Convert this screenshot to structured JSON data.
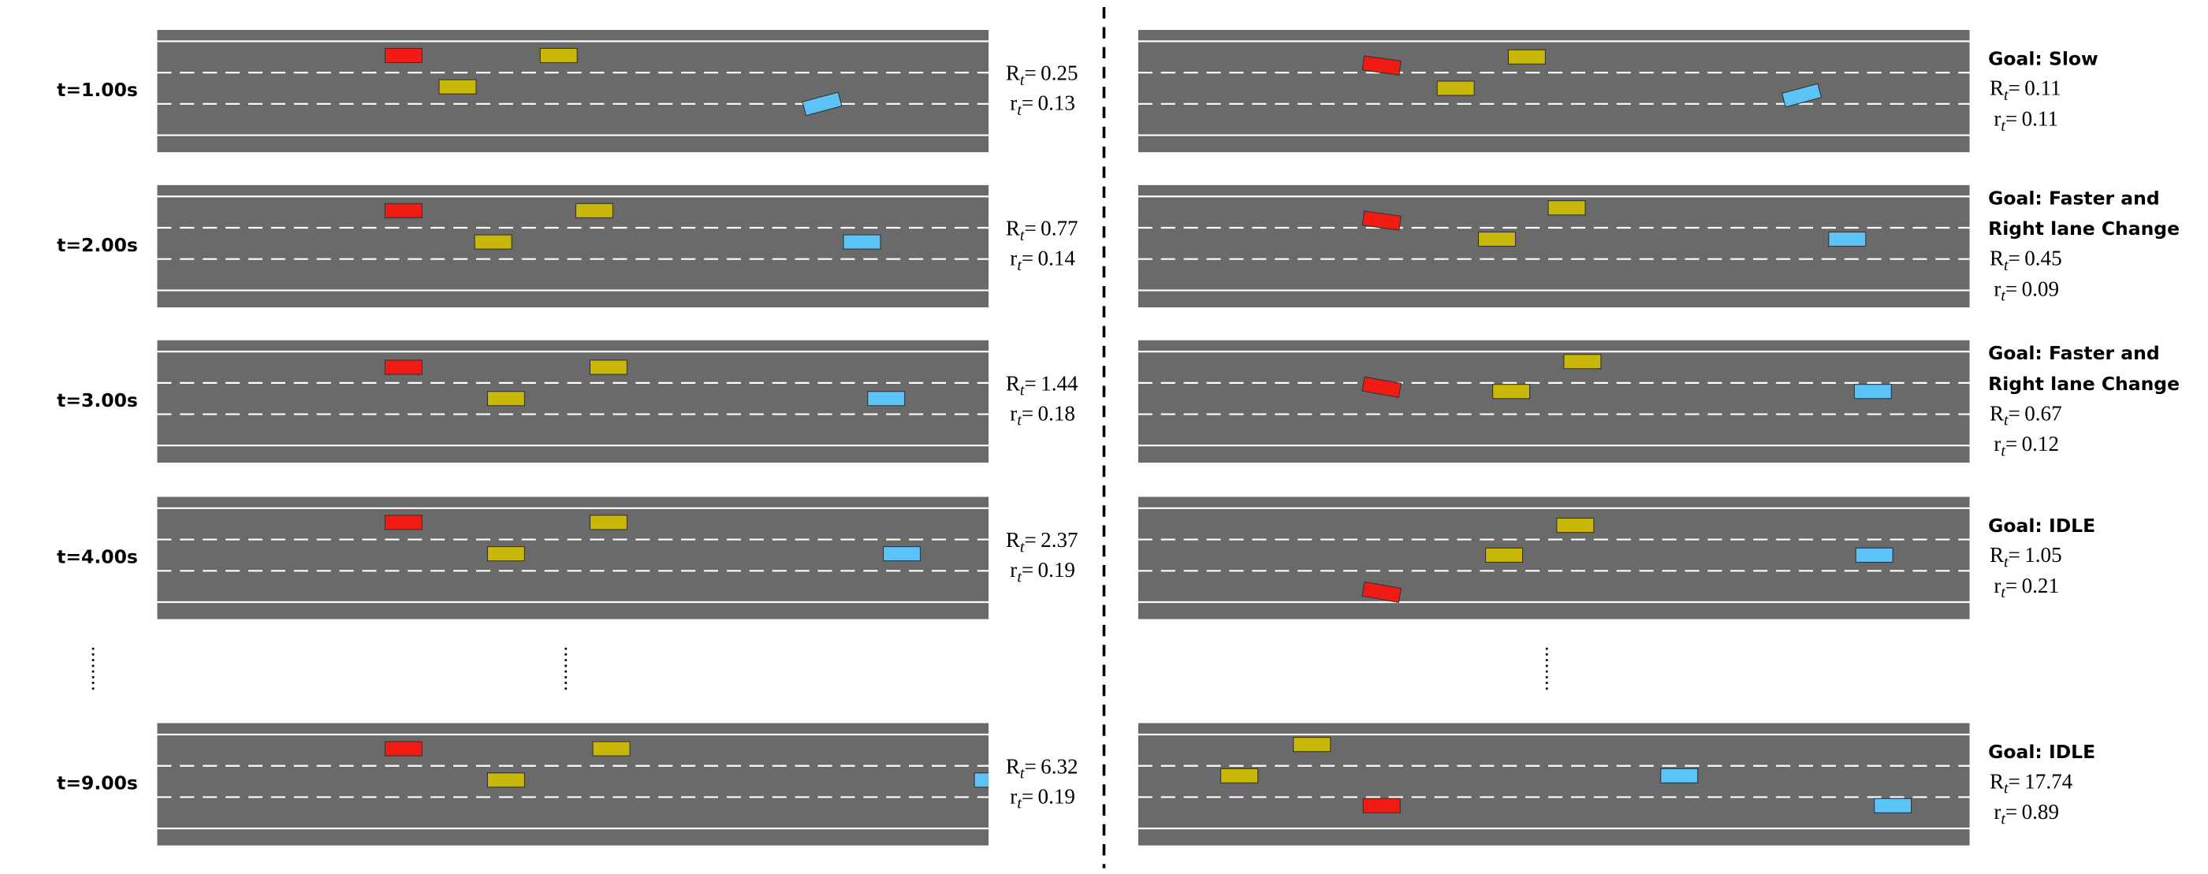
{
  "symbols": {
    "R": "R",
    "r": "r",
    "sub": "t",
    "eq": "="
  },
  "rows": [
    {
      "time": "t=1.00s",
      "left": {
        "R": 0.25,
        "r": 0.13
      },
      "right": {
        "goal": [
          "Goal: Slow"
        ],
        "R": 0.11,
        "r": 0.11
      }
    },
    {
      "time": "t=2.00s",
      "left": {
        "R": 0.77,
        "r": 0.14
      },
      "right": {
        "goal": [
          "Goal: Faster and",
          "Right lane Change"
        ],
        "R": 0.45,
        "r": 0.09
      }
    },
    {
      "time": "t=3.00s",
      "left": {
        "R": 1.44,
        "r": 0.18
      },
      "right": {
        "goal": [
          "Goal: Faster and",
          "Right lane Change"
        ],
        "R": 0.67,
        "r": 0.12
      }
    },
    {
      "time": "t=4.00s",
      "left": {
        "R": 2.37,
        "r": 0.19
      },
      "right": {
        "goal": [
          "Goal: IDLE"
        ],
        "R": 1.05,
        "r": 0.21
      }
    },
    {
      "time": "t=9.00s",
      "left": {
        "R": 6.32,
        "r": 0.19
      },
      "right": {
        "goal": [
          "Goal: IDLE"
        ],
        "R": 17.74,
        "r": 0.89
      }
    }
  ]
}
